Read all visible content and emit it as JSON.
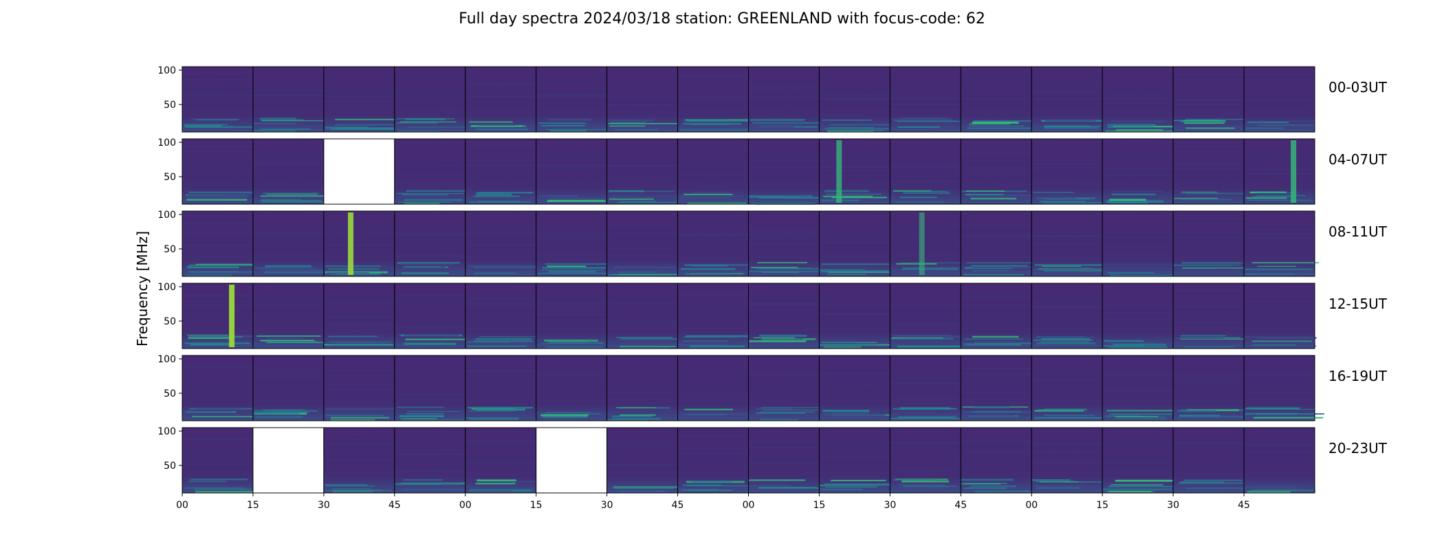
{
  "chart_data": {
    "type": "heatmap",
    "title": "Full day spectra 2024/03/18 station: GREENLAND with focus-code: 62",
    "ylabel": "Frequency [MHz]",
    "xlabel": "",
    "ylim": [
      10,
      105
    ],
    "y_ticks": [
      "100",
      "50"
    ],
    "x_ticks": [
      "00",
      "15",
      "30",
      "45",
      "00",
      "15",
      "30",
      "45",
      "00",
      "15",
      "30",
      "45",
      "00",
      "15",
      "30",
      "45"
    ],
    "panels_per_row": 16,
    "panel_minutes": 15,
    "colormap": "viridis",
    "rows": [
      {
        "label": "00-03UT",
        "missing": [],
        "bursts": []
      },
      {
        "label": "04-07UT",
        "missing": [
          2
        ],
        "bursts": [
          {
            "panel": 9,
            "pos": 0.28,
            "intensity": 0.8
          },
          {
            "panel": 15,
            "pos": 0.7,
            "intensity": 0.85
          }
        ]
      },
      {
        "label": "08-11UT",
        "missing": [],
        "bursts": [
          {
            "panel": 2,
            "pos": 0.38,
            "intensity": 0.9
          },
          {
            "panel": 10,
            "pos": 0.45,
            "intensity": 0.6
          }
        ]
      },
      {
        "label": "12-15UT",
        "missing": [],
        "bursts": [
          {
            "panel": 0,
            "pos": 0.7,
            "intensity": 0.95
          }
        ]
      },
      {
        "label": "16-19UT",
        "missing": [],
        "bursts": []
      },
      {
        "label": "20-23UT",
        "missing": [
          1,
          5
        ],
        "bursts": []
      }
    ]
  }
}
